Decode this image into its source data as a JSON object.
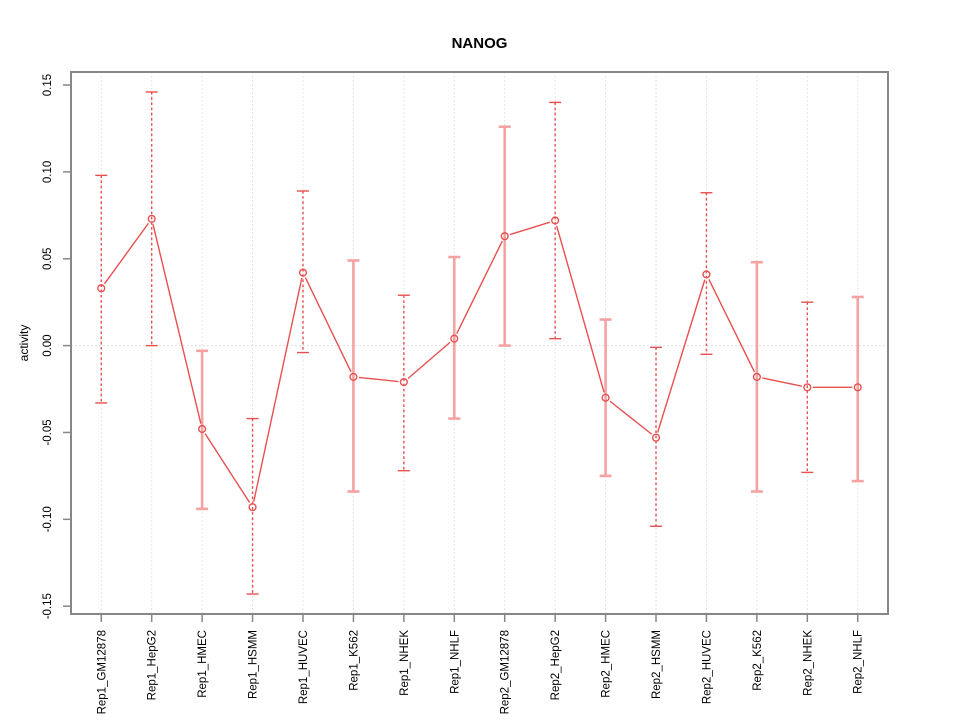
{
  "chart_data": {
    "type": "line",
    "title": "NANOG",
    "xlabel": "",
    "ylabel": "activity",
    "legend_position": "none",
    "categories": [
      "Rep1_GM12878",
      "Rep1_HepG2",
      "Rep1_HMEC",
      "Rep1_HSMM",
      "Rep1_HUVEC",
      "Rep1_K562",
      "Rep1_NHEK",
      "Rep1_NHLF",
      "Rep2_GM12878",
      "Rep2_HepG2",
      "Rep2_HMEC",
      "Rep2_HSMM",
      "Rep2_HUVEC",
      "Rep2_K562",
      "Rep2_NHEK",
      "Rep2_NHLF"
    ],
    "series": [
      {
        "name": "NANOG activity",
        "marker": "open-circle",
        "values": [
          0.033,
          0.073,
          -0.048,
          -0.093,
          0.042,
          -0.018,
          -0.021,
          0.004,
          0.063,
          0.072,
          -0.03,
          -0.053,
          0.041,
          -0.018,
          -0.024,
          -0.024
        ],
        "error_upper": [
          0.098,
          0.146,
          -0.003,
          -0.042,
          0.089,
          0.049,
          0.029,
          0.051,
          0.126,
          0.14,
          0.015,
          -0.001,
          0.088,
          0.048,
          0.025,
          0.028
        ],
        "error_lower": [
          -0.033,
          0.0,
          -0.094,
          -0.143,
          -0.004,
          -0.084,
          -0.072,
          -0.042,
          0.0,
          0.004,
          -0.075,
          -0.104,
          -0.005,
          -0.084,
          -0.073,
          -0.078
        ]
      }
    ],
    "error_bar_styles": [
      "dashed",
      "dashed",
      "solid",
      "dashed",
      "dashed",
      "solid",
      "dashed",
      "solid",
      "solid",
      "dashed",
      "solid",
      "dashed",
      "dashed",
      "solid",
      "dashed",
      "solid"
    ],
    "ylim": [
      -0.1545,
      0.1575
    ],
    "yticks": [
      -0.15,
      -0.1,
      -0.05,
      0.0,
      0.05,
      0.1,
      0.15
    ],
    "ytick_labels": [
      "-0.15",
      "-0.10",
      "-0.05",
      "0.00",
      "0.05",
      "0.10",
      "0.15"
    ],
    "grid": {
      "vertical_per_category": true,
      "horizontal_zero_line": true,
      "style": "dotted"
    },
    "tick_label_rotation_deg": 90,
    "colors": {
      "series_line": "#e85050",
      "error_bar_dashed": "#e85050",
      "error_bar_solid": "#f5a2a2",
      "box": "#878787",
      "tick": "#878787",
      "gridline": "#e0e0e0",
      "zero_line": "#d9d9d9",
      "text": "#000000",
      "background": "#ffffff"
    }
  }
}
